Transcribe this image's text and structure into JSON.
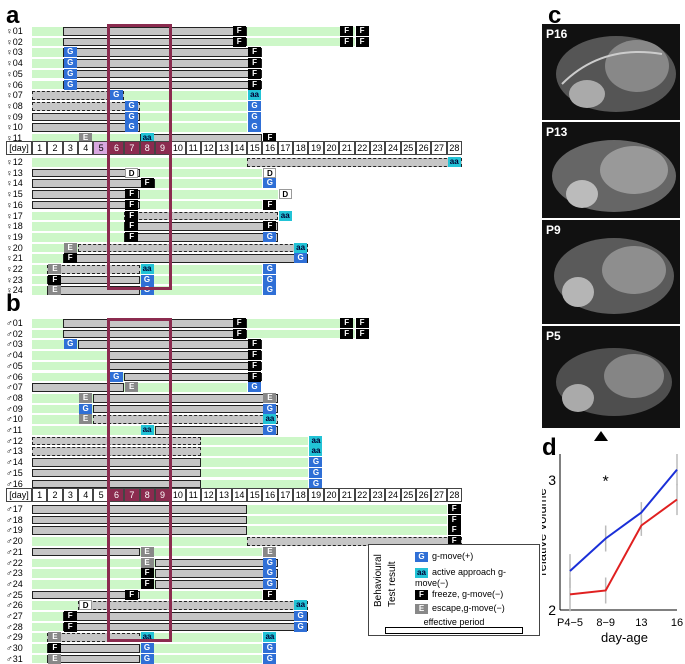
{
  "panels": {
    "a": "a",
    "b": "b",
    "c": "c",
    "d": "d"
  },
  "days": [
    "1",
    "2",
    "3",
    "4",
    "5",
    "6",
    "7",
    "8",
    "9",
    "10",
    "11",
    "12",
    "13",
    "14",
    "15",
    "16",
    "17",
    "18",
    "19",
    "20",
    "21",
    "22",
    "23",
    "24",
    "25",
    "26",
    "27",
    "28"
  ],
  "day_label": "[day]",
  "females_top": [
    {
      "id": "♀01",
      "bar": [
        3,
        14
      ],
      "marks": [
        [
          "F",
          14
        ],
        [
          "F",
          21
        ],
        [
          "F",
          22
        ]
      ],
      "dash": false
    },
    {
      "id": "♀02",
      "bar": [
        3,
        14
      ],
      "marks": [
        [
          "F",
          14
        ],
        [
          "F",
          21
        ],
        [
          "F",
          22
        ]
      ],
      "dash": false
    },
    {
      "id": "♀03",
      "bar": [
        3,
        15
      ],
      "marks": [
        [
          "G",
          3
        ],
        [
          "F",
          15
        ]
      ],
      "dash": false
    },
    {
      "id": "♀04",
      "bar": [
        3,
        15
      ],
      "marks": [
        [
          "G",
          3
        ],
        [
          "F",
          15
        ]
      ],
      "dash": false
    },
    {
      "id": "♀05",
      "bar": [
        3,
        15
      ],
      "marks": [
        [
          "G",
          3
        ],
        [
          "F",
          15
        ]
      ],
      "dash": false
    },
    {
      "id": "♀06",
      "bar": [
        3,
        15
      ],
      "marks": [
        [
          "G",
          3
        ],
        [
          "F",
          15
        ]
      ],
      "dash": false
    },
    {
      "id": "♀07",
      "bar": [
        1,
        6
      ],
      "marks": [
        [
          "G",
          6
        ],
        [
          "aa",
          15
        ]
      ],
      "dash": true
    },
    {
      "id": "♀08",
      "bar": [
        1,
        7
      ],
      "marks": [
        [
          "G",
          7
        ],
        [
          "G",
          15
        ]
      ],
      "dash": true
    },
    {
      "id": "♀09",
      "bar": [
        1,
        7
      ],
      "marks": [
        [
          "G",
          7
        ],
        [
          "G",
          15
        ]
      ],
      "dash": false
    },
    {
      "id": "♀10",
      "bar": [
        1,
        7
      ],
      "marks": [
        [
          "G",
          7
        ],
        [
          "G",
          15
        ]
      ],
      "dash": false
    },
    {
      "id": "♀11",
      "bar": [
        8,
        15
      ],
      "marks": [
        [
          "E",
          4
        ],
        [
          "aa",
          8
        ],
        [
          "F",
          16
        ]
      ],
      "dash": false
    }
  ],
  "females_bottom": [
    {
      "id": "♀12",
      "bar": [
        15,
        28
      ],
      "marks": [
        [
          "aa",
          28
        ]
      ],
      "dash": true
    },
    {
      "id": "♀13",
      "bar": [
        1,
        7
      ],
      "marks": [
        [
          "D",
          7
        ],
        [
          "D",
          16
        ]
      ],
      "dash": false
    },
    {
      "id": "♀14",
      "bar": [
        1,
        8
      ],
      "marks": [
        [
          "F",
          8
        ],
        [
          "G",
          16
        ]
      ],
      "dash": false
    },
    {
      "id": "♀15",
      "bar": [
        1,
        7
      ],
      "marks": [
        [
          "F",
          7
        ],
        [
          "D",
          17
        ]
      ],
      "dash": false
    },
    {
      "id": "♀16",
      "bar": [
        1,
        7
      ],
      "marks": [
        [
          "F",
          7
        ],
        [
          "F",
          16
        ]
      ],
      "dash": false
    },
    {
      "id": "♀17",
      "bar": [
        7,
        16
      ],
      "marks": [
        [
          "F",
          7
        ],
        [
          "aa",
          17
        ]
      ],
      "dash": true
    },
    {
      "id": "♀18",
      "bar": [
        7,
        16
      ],
      "marks": [
        [
          "F",
          7
        ],
        [
          "F",
          16
        ]
      ],
      "dash": false
    },
    {
      "id": "♀19",
      "bar": [
        7,
        16
      ],
      "marks": [
        [
          "F",
          7
        ],
        [
          "G",
          16
        ]
      ],
      "dash": false
    },
    {
      "id": "♀20",
      "bar": [
        4,
        18
      ],
      "marks": [
        [
          "E",
          3
        ],
        [
          "aa",
          18
        ]
      ],
      "dash": true
    },
    {
      "id": "♀21",
      "bar": [
        3,
        18
      ],
      "marks": [
        [
          "F",
          3
        ],
        [
          "G",
          18
        ]
      ],
      "dash": false
    },
    {
      "id": "♀22",
      "bar": [
        2,
        7
      ],
      "marks": [
        [
          "E",
          2
        ],
        [
          "aa",
          8
        ],
        [
          "G",
          16
        ]
      ],
      "dash": true
    },
    {
      "id": "♀23",
      "bar": [
        2,
        7
      ],
      "marks": [
        [
          "F",
          2
        ],
        [
          "G",
          8
        ],
        [
          "G",
          16
        ]
      ],
      "dash": false
    },
    {
      "id": "♀24",
      "bar": [
        2,
        7
      ],
      "marks": [
        [
          "E",
          2
        ],
        [
          "G",
          8
        ],
        [
          "G",
          16
        ]
      ],
      "dash": false
    }
  ],
  "males_top": [
    {
      "id": "♂01",
      "bar": [
        3,
        14
      ],
      "marks": [
        [
          "F",
          14
        ],
        [
          "F",
          21
        ],
        [
          "F",
          22
        ]
      ],
      "dash": false
    },
    {
      "id": "♂02",
      "bar": [
        3,
        14
      ],
      "marks": [
        [
          "F",
          14
        ],
        [
          "F",
          21
        ],
        [
          "F",
          22
        ]
      ],
      "dash": false
    },
    {
      "id": "♂03",
      "bar": [
        4,
        15
      ],
      "marks": [
        [
          "G",
          3
        ],
        [
          "F",
          15
        ]
      ],
      "dash": false
    },
    {
      "id": "♂04",
      "bar": [
        6,
        15
      ],
      "marks": [
        [
          "F",
          15
        ]
      ],
      "dash": false
    },
    {
      "id": "♂05",
      "bar": [
        6,
        15
      ],
      "marks": [
        [
          "F",
          15
        ]
      ],
      "dash": false
    },
    {
      "id": "♂06",
      "bar": [
        7,
        15
      ],
      "marks": [
        [
          "G",
          6
        ],
        [
          "F",
          15
        ]
      ],
      "dash": false
    },
    {
      "id": "♂07",
      "bar": [
        1,
        6
      ],
      "marks": [
        [
          "E",
          7
        ],
        [
          "G",
          15
        ]
      ],
      "dash": false
    },
    {
      "id": "♂08",
      "bar": [
        5,
        16
      ],
      "marks": [
        [
          "E",
          4
        ],
        [
          "E",
          16
        ]
      ],
      "dash": false
    },
    {
      "id": "♂09",
      "bar": [
        5,
        16
      ],
      "marks": [
        [
          "G",
          4
        ],
        [
          "G",
          16
        ]
      ],
      "dash": false
    },
    {
      "id": "♂10",
      "bar": [
        5,
        16
      ],
      "marks": [
        [
          "E",
          4
        ],
        [
          "aa",
          16
        ]
      ],
      "dash": true
    },
    {
      "id": "♂11",
      "bar": [
        9,
        16
      ],
      "marks": [
        [
          "aa",
          8
        ],
        [
          "G",
          16
        ]
      ],
      "dash": false
    },
    {
      "id": "♂12",
      "bar": [
        1,
        11
      ],
      "marks": [
        [
          "aa",
          19
        ]
      ],
      "dash": true
    },
    {
      "id": "♂13",
      "bar": [
        1,
        11
      ],
      "marks": [
        [
          "aa",
          19
        ]
      ],
      "dash": true
    },
    {
      "id": "♂14",
      "bar": [
        1,
        11
      ],
      "marks": [
        [
          "G",
          19
        ]
      ],
      "dash": false
    },
    {
      "id": "♂15",
      "bar": [
        1,
        11
      ],
      "marks": [
        [
          "G",
          19
        ]
      ],
      "dash": false
    },
    {
      "id": "♂16",
      "bar": [
        1,
        11
      ],
      "marks": [
        [
          "G",
          19
        ]
      ],
      "dash": false
    }
  ],
  "males_bottom": [
    {
      "id": "♂17",
      "bar": [
        1,
        14
      ],
      "marks": [
        [
          "F",
          28
        ]
      ],
      "dash": false
    },
    {
      "id": "♂18",
      "bar": [
        1,
        14
      ],
      "marks": [
        [
          "F",
          28
        ]
      ],
      "dash": false
    },
    {
      "id": "♂19",
      "bar": [
        1,
        14
      ],
      "marks": [
        [
          "F",
          28
        ]
      ],
      "dash": false
    },
    {
      "id": "♂20",
      "bar": [
        15,
        28
      ],
      "marks": [
        [
          "F",
          28
        ]
      ],
      "dash": true
    },
    {
      "id": "♂21",
      "bar": [
        1,
        7
      ],
      "marks": [
        [
          "E",
          8
        ],
        [
          "E",
          16
        ]
      ],
      "dash": false
    },
    {
      "id": "♂22",
      "bar": [
        9,
        16
      ],
      "marks": [
        [
          "E",
          8
        ],
        [
          "G",
          16
        ]
      ],
      "dash": false
    },
    {
      "id": "♂23",
      "bar": [
        9,
        16
      ],
      "marks": [
        [
          "F",
          8
        ],
        [
          "G",
          16
        ]
      ],
      "dash": false
    },
    {
      "id": "♂24",
      "bar": [
        9,
        16
      ],
      "marks": [
        [
          "F",
          8
        ],
        [
          "G",
          16
        ]
      ],
      "dash": false
    },
    {
      "id": "♂25",
      "bar": [
        1,
        7
      ],
      "marks": [
        [
          "F",
          7
        ],
        [
          "F",
          16
        ]
      ],
      "dash": false
    },
    {
      "id": "♂26",
      "bar": [
        4,
        18
      ],
      "marks": [
        [
          "D",
          4
        ],
        [
          "aa",
          18
        ]
      ],
      "dash": true
    },
    {
      "id": "♂27",
      "bar": [
        3,
        18
      ],
      "marks": [
        [
          "F",
          3
        ],
        [
          "G",
          18
        ]
      ],
      "dash": false
    },
    {
      "id": "♂28",
      "bar": [
        3,
        18
      ],
      "marks": [
        [
          "F",
          3
        ],
        [
          "G",
          18
        ]
      ],
      "dash": false
    },
    {
      "id": "♂29",
      "bar": [
        2,
        7
      ],
      "marks": [
        [
          "E",
          2
        ],
        [
          "aa",
          8
        ],
        [
          "aa",
          16
        ]
      ],
      "dash": true
    },
    {
      "id": "♂30",
      "bar": [
        2,
        7
      ],
      "marks": [
        [
          "F",
          2
        ],
        [
          "G",
          8
        ],
        [
          "G",
          16
        ]
      ],
      "dash": false
    },
    {
      "id": "♂31",
      "bar": [
        2,
        7
      ],
      "marks": [
        [
          "E",
          2
        ],
        [
          "G",
          8
        ],
        [
          "G",
          16
        ]
      ],
      "dash": false
    }
  ],
  "legend": {
    "title1": "Behavioural",
    "title2": "Test result",
    "items": [
      {
        "mark": "G",
        "text": "g-move(+)"
      },
      {
        "mark": "aa",
        "text": "active approach g-move(−)"
      },
      {
        "mark": "F",
        "text": "freeze, g-move(−)"
      },
      {
        "mark": "E",
        "text": "escape,g-move(−)"
      }
    ],
    "effective": "effective period"
  },
  "mri": [
    {
      "label": "P16"
    },
    {
      "label": "P13"
    },
    {
      "label": "P9"
    },
    {
      "label": "P5"
    }
  ],
  "chart_data": {
    "type": "line",
    "title": "",
    "xlabel": "day-age",
    "ylabel": "relative volume",
    "categories": [
      "P4−5",
      "8−9",
      "13",
      "16"
    ],
    "ylim": [
      2.0,
      3.2
    ],
    "yticks": [
      "2",
      "3"
    ],
    "annotation": "*",
    "series": [
      {
        "name": "blue",
        "color": "#1a2fd8",
        "values": [
          2.3,
          2.55,
          2.75,
          3.08
        ]
      },
      {
        "name": "red",
        "color": "#e02020",
        "values": [
          2.12,
          2.15,
          2.65,
          2.85
        ]
      }
    ],
    "errors": [
      0.13,
      0.1,
      0.08,
      0.12
    ]
  }
}
